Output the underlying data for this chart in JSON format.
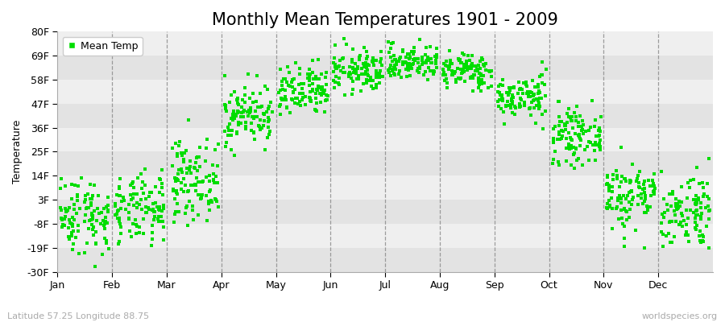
{
  "title": "Monthly Mean Temperatures 1901 - 2009",
  "ylabel": "Temperature",
  "xlabel_bottom_left": "Latitude 57.25 Longitude 88.75",
  "xlabel_bottom_right": "worldspecies.org",
  "ytick_labels": [
    "80F",
    "69F",
    "58F",
    "47F",
    "36F",
    "25F",
    "14F",
    "3F",
    "-8F",
    "-19F",
    "-30F"
  ],
  "ytick_values": [
    80,
    69,
    58,
    47,
    36,
    25,
    14,
    3,
    -8,
    -19,
    -30
  ],
  "ylim": [
    -30,
    80
  ],
  "months": [
    "Jan",
    "Feb",
    "Mar",
    "Apr",
    "May",
    "Jun",
    "Jul",
    "Aug",
    "Sep",
    "Oct",
    "Nov",
    "Dec"
  ],
  "dot_color": "#00dd00",
  "bg_band_light": "#efefef",
  "bg_band_dark": "#e3e3e3",
  "monthly_means_f": [
    -4,
    -2,
    12,
    42,
    52,
    62,
    66,
    62,
    50,
    32,
    5,
    -2
  ],
  "monthly_stds_f": [
    9,
    8,
    9,
    7,
    6,
    5,
    4,
    4,
    5,
    6,
    8,
    9
  ],
  "n_years": 109,
  "seed": 42,
  "legend_label": "Mean Temp",
  "title_fontsize": 15,
  "axis_fontsize": 9,
  "tick_fontsize": 9,
  "marker_size": 6
}
